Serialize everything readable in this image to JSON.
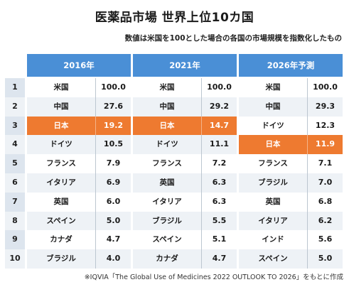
{
  "title": "医薬品市場 世界上位10カ国",
  "subtitle": "数値は米国を100とした場合の各国の市場規模を指数化したもの",
  "footer": "※IQVIA「The Global Use of Medicines 2022 OUTLOOK TO 2026」をもとに作成",
  "colors": {
    "header": "#4a8fd6",
    "highlight": "#ee7a30",
    "stripe": "#eef2f6"
  },
  "chart_data": {
    "type": "table",
    "title": "医薬品市場 世界上位10カ国",
    "ranks": [
      "1",
      "2",
      "3",
      "4",
      "5",
      "6",
      "7",
      "8",
      "9",
      "10"
    ],
    "highlight_country": "日本",
    "blocks": [
      {
        "label": "2016年",
        "rows": [
          {
            "name": "米国",
            "value": "100.0"
          },
          {
            "name": "中国",
            "value": "27.6"
          },
          {
            "name": "日本",
            "value": "19.2"
          },
          {
            "name": "ドイツ",
            "value": "10.5"
          },
          {
            "name": "フランス",
            "value": "7.9"
          },
          {
            "name": "イタリア",
            "value": "6.9"
          },
          {
            "name": "英国",
            "value": "6.0"
          },
          {
            "name": "スペイン",
            "value": "5.0"
          },
          {
            "name": "カナダ",
            "value": "4.7"
          },
          {
            "name": "ブラジル",
            "value": "4.0"
          }
        ]
      },
      {
        "label": "2021年",
        "rows": [
          {
            "name": "米国",
            "value": "100.0"
          },
          {
            "name": "中国",
            "value": "29.2"
          },
          {
            "name": "日本",
            "value": "14.7"
          },
          {
            "name": "ドイツ",
            "value": "11.1"
          },
          {
            "name": "フランス",
            "value": "7.2"
          },
          {
            "name": "英国",
            "value": "6.3"
          },
          {
            "name": "イタリア",
            "value": "6.3"
          },
          {
            "name": "ブラジル",
            "value": "5.5"
          },
          {
            "name": "スペイン",
            "value": "5.1"
          },
          {
            "name": "カナダ",
            "value": "4.7"
          }
        ]
      },
      {
        "label": "2026年予測",
        "rows": [
          {
            "name": "米国",
            "value": "100.0"
          },
          {
            "name": "中国",
            "value": "29.3"
          },
          {
            "name": "ドイツ",
            "value": "12.3"
          },
          {
            "name": "日本",
            "value": "11.9"
          },
          {
            "name": "フランス",
            "value": "7.1"
          },
          {
            "name": "ブラジル",
            "value": "7.0"
          },
          {
            "name": "英国",
            "value": "6.8"
          },
          {
            "name": "イタリア",
            "value": "6.2"
          },
          {
            "name": "インド",
            "value": "5.6"
          },
          {
            "name": "スペイン",
            "value": "5.0"
          }
        ]
      }
    ]
  }
}
